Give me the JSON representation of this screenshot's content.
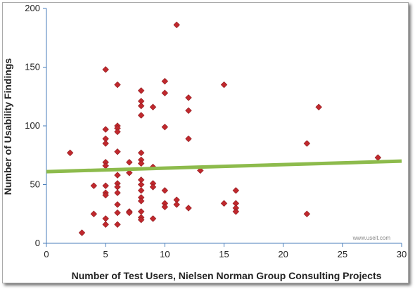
{
  "chart_data": {
    "type": "scatter",
    "xlabel": "Number of Test Users, Nielsen Norman Group Consulting Projects",
    "ylabel": "Number of Usability Findings",
    "xlim": [
      0,
      30
    ],
    "ylim": [
      0,
      200
    ],
    "xticks": [
      "0",
      "5",
      "10",
      "15",
      "20",
      "25",
      "30"
    ],
    "yticks": [
      "0",
      "50",
      "100",
      "150",
      "200"
    ],
    "grid": false,
    "marker_color": "#c0282d",
    "trend_color": "#8dbb4c",
    "trend_line": {
      "x": [
        0,
        30
      ],
      "y": [
        61,
        70
      ]
    },
    "watermark": "www.useit.com",
    "points": [
      [
        2,
        77
      ],
      [
        3,
        9
      ],
      [
        4,
        49
      ],
      [
        4,
        25
      ],
      [
        5,
        148
      ],
      [
        5,
        97
      ],
      [
        5,
        89
      ],
      [
        5,
        85
      ],
      [
        5,
        69
      ],
      [
        5,
        66
      ],
      [
        5,
        49
      ],
      [
        5,
        43
      ],
      [
        5,
        41
      ],
      [
        5,
        21
      ],
      [
        5,
        16
      ],
      [
        6,
        135
      ],
      [
        6,
        100
      ],
      [
        6,
        98
      ],
      [
        6,
        95
      ],
      [
        6,
        78
      ],
      [
        6,
        58
      ],
      [
        6,
        51
      ],
      [
        6,
        48
      ],
      [
        6,
        43
      ],
      [
        6,
        33
      ],
      [
        6,
        26
      ],
      [
        6,
        16
      ],
      [
        7,
        69
      ],
      [
        7,
        60
      ],
      [
        7,
        27
      ],
      [
        7,
        26
      ],
      [
        8,
        130
      ],
      [
        8,
        121
      ],
      [
        8,
        117
      ],
      [
        8,
        109
      ],
      [
        8,
        77
      ],
      [
        8,
        71
      ],
      [
        8,
        68
      ],
      [
        8,
        54
      ],
      [
        8,
        50
      ],
      [
        8,
        45
      ],
      [
        8,
        39
      ],
      [
        8,
        36
      ],
      [
        8,
        27
      ],
      [
        8,
        22
      ],
      [
        8,
        20
      ],
      [
        9,
        116
      ],
      [
        9,
        65
      ],
      [
        9,
        51
      ],
      [
        9,
        48
      ],
      [
        9,
        21
      ],
      [
        10,
        138
      ],
      [
        10,
        128
      ],
      [
        10,
        99
      ],
      [
        10,
        45
      ],
      [
        10,
        34
      ],
      [
        10,
        31
      ],
      [
        11,
        186
      ],
      [
        11,
        37
      ],
      [
        11,
        33
      ],
      [
        12,
        124
      ],
      [
        12,
        113
      ],
      [
        12,
        89
      ],
      [
        12,
        30
      ],
      [
        13,
        62
      ],
      [
        15,
        135
      ],
      [
        15,
        34
      ],
      [
        16,
        45
      ],
      [
        16,
        34
      ],
      [
        16,
        30
      ],
      [
        16,
        27
      ],
      [
        22,
        85
      ],
      [
        22,
        25
      ],
      [
        23,
        116
      ],
      [
        28,
        73
      ]
    ]
  }
}
